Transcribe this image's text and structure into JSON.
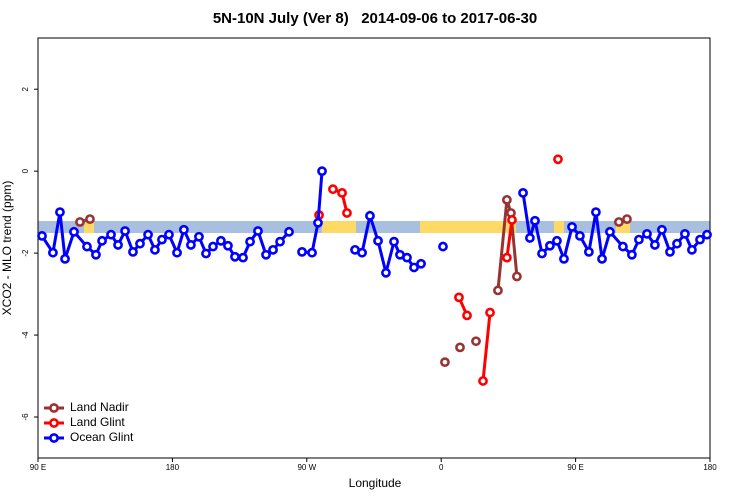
{
  "chart_data": {
    "type": "line",
    "title": "5N-10N July (Ver 8)   2014-09-06 to 2017-06-30",
    "xlabel": "Longitude",
    "ylabel": "XCO2 - MLO trend (ppm)",
    "xlim": [
      90,
      540
    ],
    "ylim": [
      -7,
      3.25
    ],
    "xticks": [
      90,
      180,
      {
        "value": 270,
        "label": "90 W"
      },
      {
        "value": 360,
        "label": "0"
      },
      {
        "value": 450,
        "label": "90 E"
      },
      {
        "value": 540,
        "label": "180"
      }
    ],
    "xtick_first_label": "90 E",
    "yticks": [
      2,
      0,
      -2,
      -4,
      -6
    ],
    "legend": "bottom-left",
    "series": [
      {
        "name": "Land Nadir",
        "color": "#993333",
        "x": [
          118.1,
          124.8,
          null,
          362.5,
          null,
          372.6,
          null,
          383.3,
          null,
          398.0,
          404.0,
          406.7,
          410.7,
          null,
          479.0,
          484.4
        ],
        "values": [
          -1.24,
          -1.17,
          null,
          -4.66,
          null,
          -4.3,
          null,
          -4.15,
          null,
          -2.91,
          -0.7,
          -1.02,
          -2.57,
          null,
          -1.24,
          -1.17
        ]
      },
      {
        "name": "Land Glint",
        "color": "#ff0000",
        "x": [
          278.2,
          null,
          287.5,
          293.6,
          296.9,
          null,
          371.9,
          377.3,
          null,
          388.0,
          392.7,
          null,
          404.0,
          407.4,
          null,
          438.2
        ],
        "values": [
          -1.07,
          null,
          -0.44,
          -0.53,
          -1.02,
          null,
          -3.08,
          -3.52,
          null,
          -5.12,
          -3.45,
          null,
          -2.11,
          -1.19,
          null,
          0.29
        ]
      },
      {
        "name": "Ocean Glint",
        "color": "#0000ff",
        "x": [
          92.7,
          100.0,
          104.7,
          108.1,
          114.1,
          122.8,
          128.8,
          132.9,
          138.9,
          143.6,
          148.3,
          153.6,
          158.3,
          163.7,
          168.3,
          173.0,
          177.7,
          183.1,
          187.7,
          192.4,
          197.8,
          202.5,
          207.2,
          212.5,
          217.2,
          221.9,
          227.3,
          232.0,
          237.3,
          242.7,
          247.4,
          252.1,
          258.1,
          null,
          266.8,
          273.5,
          277.5,
          280.2,
          null,
          302.3,
          307.0,
          312.3,
          317.7,
          323.0,
          328.4,
          332.4,
          337.1,
          341.8,
          346.5,
          null,
          361.2,
          null,
          414.8,
          419.4,
          422.8,
          427.5,
          432.8,
          437.5,
          442.2,
          447.6,
          452.9,
          458.9,
          463.6,
          467.7,
          473.0,
          481.7,
          487.7,
          492.4,
          497.8,
          503.1,
          507.8,
          513.2,
          517.9,
          523.2,
          527.9,
          533.3,
          538.0
        ],
        "values": [
          -1.58,
          -1.99,
          -1.0,
          -2.14,
          -1.48,
          -1.84,
          -2.04,
          -1.7,
          -1.55,
          -1.8,
          -1.46,
          -1.97,
          -1.77,
          -1.55,
          -1.92,
          -1.67,
          -1.55,
          -1.99,
          -1.43,
          -1.8,
          -1.6,
          -2.01,
          -1.84,
          -1.7,
          -1.82,
          -2.09,
          -2.11,
          -1.72,
          -1.46,
          -2.04,
          -1.92,
          -1.72,
          -1.48,
          null,
          -1.97,
          -1.99,
          -1.26,
          0.0,
          null,
          -1.92,
          -1.99,
          -1.09,
          -1.7,
          -2.48,
          -1.72,
          -2.04,
          -2.11,
          -2.35,
          -2.26,
          null,
          -1.84,
          null,
          -0.53,
          -1.63,
          -1.21,
          -2.01,
          -1.82,
          -1.7,
          -2.14,
          -1.36,
          -1.58,
          -1.97,
          -1.0,
          -2.14,
          -1.48,
          -1.84,
          -2.04,
          -1.67,
          -1.53,
          -1.8,
          -1.43,
          -1.97,
          -1.77,
          -1.53,
          -1.92,
          -1.67,
          -1.55
        ]
      }
    ]
  }
}
